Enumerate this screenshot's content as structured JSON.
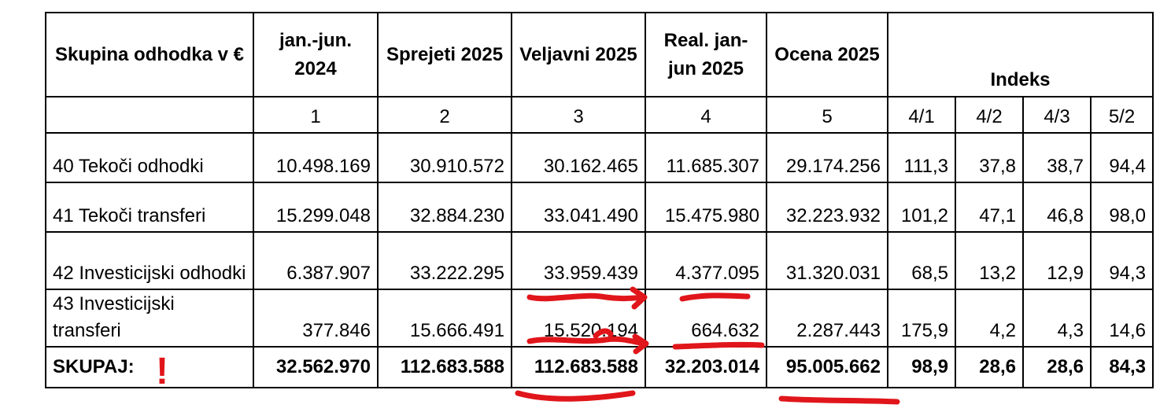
{
  "table": {
    "headers": {
      "group": "Skupina odhodka v €",
      "c1": "jan.-jun. 2024",
      "c2": "Sprejeti 2025",
      "c3": "Veljavni 2025",
      "c4": "Real. jan-jun 2025",
      "c5": "Ocena 2025",
      "index": "Indeks"
    },
    "column_numbers": [
      "1",
      "2",
      "3",
      "4",
      "5"
    ],
    "index_columns": [
      "4/1",
      "4/2",
      "4/3",
      "5/2"
    ],
    "rows": [
      {
        "label": "40 Tekoči odhodki",
        "values": [
          "10.498.169",
          "30.910.572",
          "30.162.465",
          "11.685.307",
          "29.174.256"
        ],
        "indices": [
          "111,3",
          "37,8",
          "38,7",
          "94,4"
        ]
      },
      {
        "label": "41 Tekoči transferi",
        "values": [
          "15.299.048",
          "32.884.230",
          "33.041.490",
          "15.475.980",
          "32.223.932"
        ],
        "indices": [
          "101,2",
          "47,1",
          "46,8",
          "98,0"
        ]
      },
      {
        "label": "42 Investicijski odhodki",
        "values": [
          "6.387.907",
          "33.222.295",
          "33.959.439",
          "4.377.095",
          "31.320.031"
        ],
        "indices": [
          "68,5",
          "13,2",
          "12,9",
          "94,3"
        ]
      },
      {
        "label": "43 Investicijski transferi",
        "values": [
          "377.846",
          "15.666.491",
          "15.520.194",
          "664.632",
          "2.287.443"
        ],
        "indices": [
          "175,9",
          "4,2",
          "4,3",
          "14,6"
        ]
      }
    ],
    "total": {
      "label": "SKUPAJ:",
      "values": [
        "32.562.970",
        "112.683.588",
        "112.683.588",
        "32.203.014",
        "95.005.662"
      ],
      "indices": [
        "98,9",
        "28,6",
        "28,6",
        "84,3"
      ]
    }
  },
  "annotations": {
    "color": "#e0161b",
    "mark": "!"
  }
}
